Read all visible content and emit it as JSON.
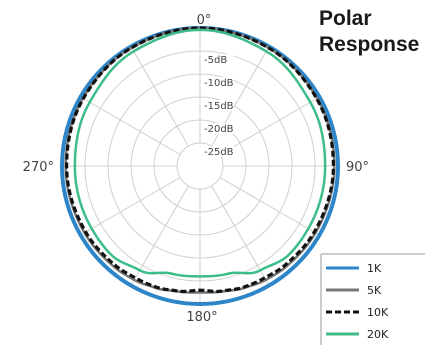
{
  "chart_data": {
    "type": "polar-line",
    "title_lines": [
      "Polar",
      "Response"
    ],
    "angle_labels": [
      {
        "angle": 0,
        "text": "0°"
      },
      {
        "angle": 90,
        "text": "90°"
      },
      {
        "angle": 180,
        "text": "180°"
      },
      {
        "angle": 270,
        "text": "270°"
      }
    ],
    "ring_labels": [
      "-5dB",
      "-10dB",
      "-15dB",
      "-20dB",
      "-25dB"
    ],
    "rings_db": [
      0,
      -5,
      -10,
      -15,
      -20,
      -25
    ],
    "r_range_db": [
      -30,
      0
    ],
    "spoke_step_deg": 30,
    "legend_position": "bottom-right",
    "series": [
      {
        "name": "1K",
        "color": "#2e86c8",
        "dash": "solid",
        "angles": [
          0,
          90,
          180,
          270
        ],
        "db": [
          0,
          0,
          0,
          0
        ]
      },
      {
        "name": "5K",
        "color": "#777777",
        "dash": "solid",
        "angles": [
          0,
          30,
          60,
          90,
          120,
          140,
          150,
          160,
          170,
          180,
          190,
          200,
          210,
          220,
          240,
          270,
          300,
          330
        ],
        "db": [
          0,
          -0.3,
          -0.6,
          -0.8,
          -1,
          -1.2,
          -1.4,
          -1.8,
          -2.3,
          -2.5,
          -2.3,
          -1.8,
          -1.4,
          -1.2,
          -1,
          -0.8,
          -0.6,
          -0.3
        ]
      },
      {
        "name": "10K",
        "color": "#111111",
        "dash": "dashed",
        "angles": [
          0,
          30,
          60,
          90,
          120,
          140,
          150,
          160,
          170,
          180,
          190,
          200,
          210,
          220,
          240,
          270,
          300,
          330
        ],
        "db": [
          0,
          -0.3,
          -0.7,
          -1,
          -1.3,
          -1.6,
          -1.9,
          -2,
          -2.4,
          -3,
          -2.4,
          -2,
          -1.9,
          -1.6,
          -1.3,
          -1,
          -0.7,
          -0.3
        ]
      },
      {
        "name": "20K",
        "color": "#3dbd8a",
        "dash": "solid",
        "angles": [
          0,
          30,
          60,
          90,
          120,
          135,
          150,
          165,
          180,
          195,
          210,
          225,
          240,
          270,
          300,
          330
        ],
        "db": [
          -0.4,
          -1.2,
          -2.3,
          -2.8,
          -2.8,
          -2.7,
          -3.8,
          -5.8,
          -6.0,
          -5.8,
          -3.8,
          -2.7,
          -2.8,
          -2.8,
          -2.3,
          -1.2
        ]
      }
    ]
  }
}
